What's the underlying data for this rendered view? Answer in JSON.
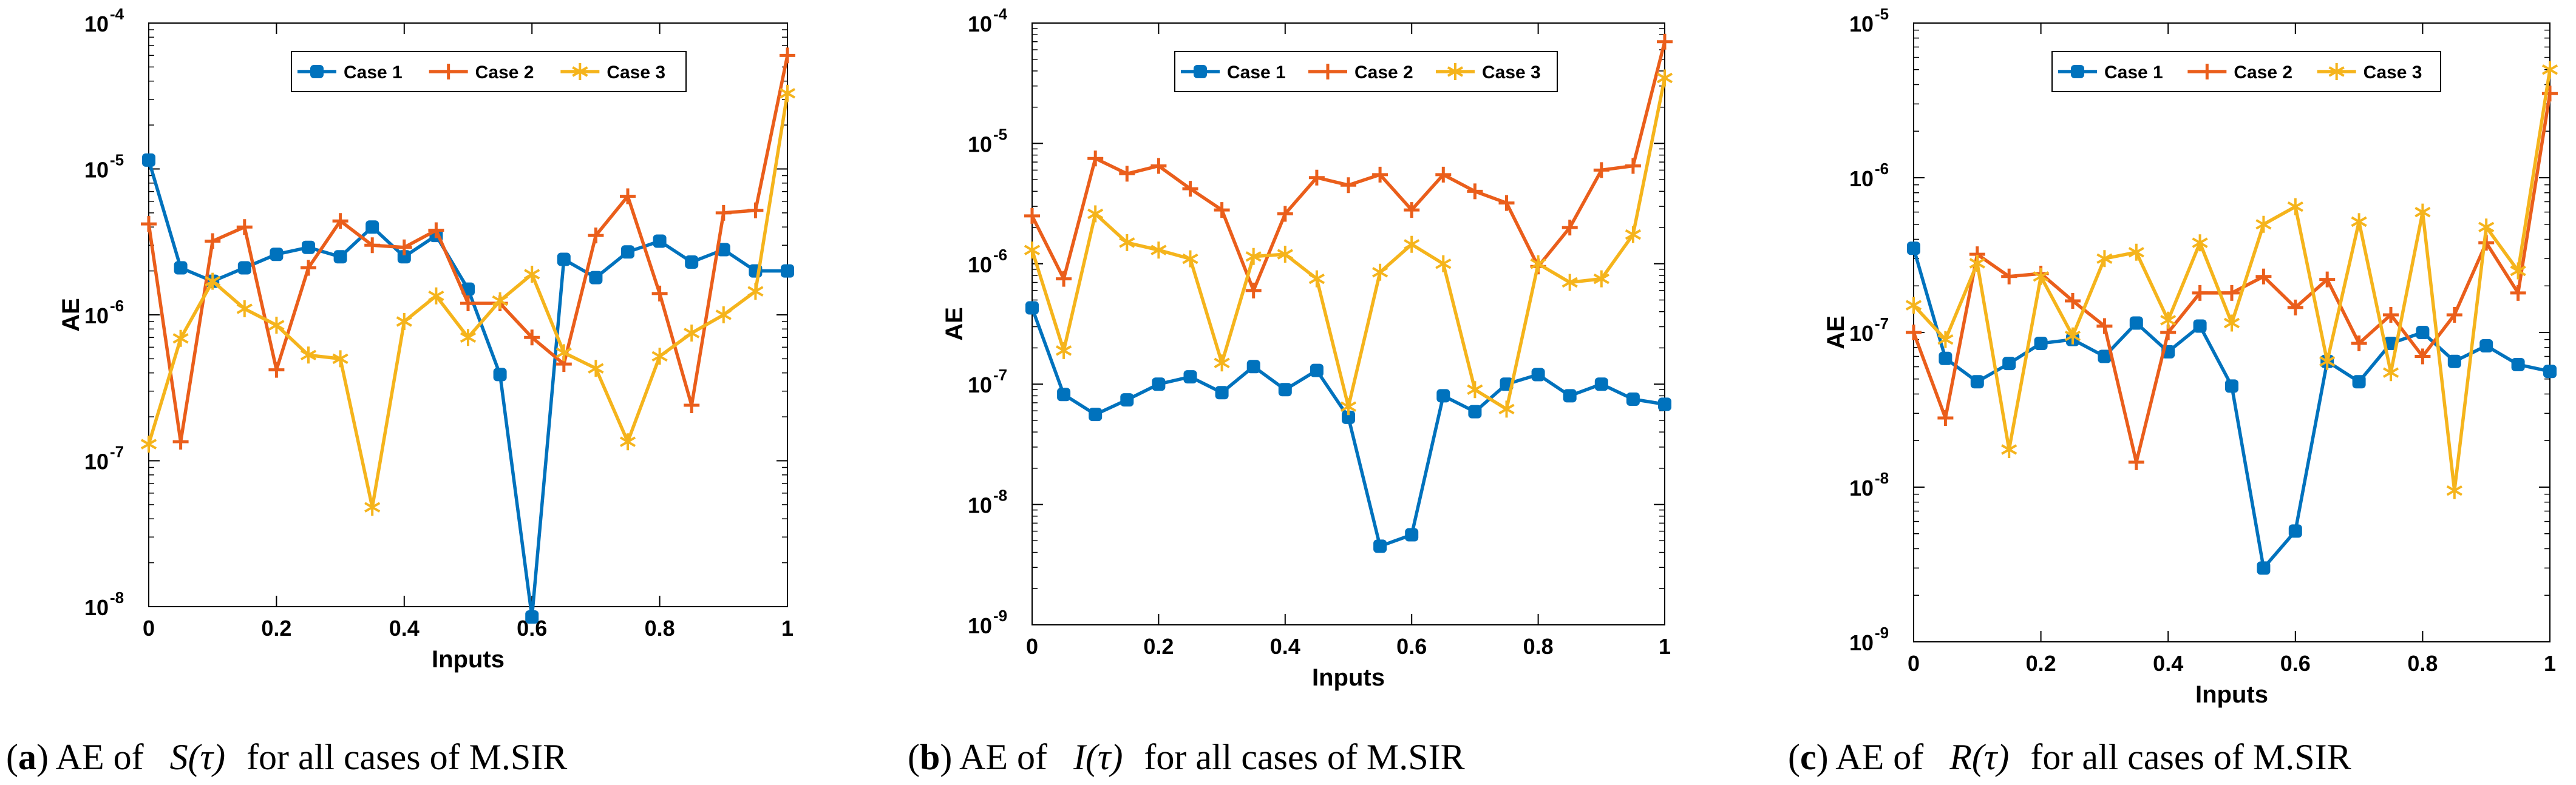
{
  "figure": {
    "colors": {
      "case1": "#0072BD",
      "case2": "#EA5E1B",
      "case3": "#F5B41C",
      "axis": "#000000",
      "box": "#000000",
      "background": "#ffffff"
    }
  },
  "chart_data": [
    {
      "type": "line",
      "id": "a",
      "title": "",
      "xlabel": "Inputs",
      "ylabel": "AE",
      "yscale": "log",
      "xlim": [
        0,
        1
      ],
      "ylim": [
        1e-08,
        0.0001
      ],
      "x_ticks": [
        "0",
        "0.2",
        "0.4",
        "0.6",
        "0.8",
        "1"
      ],
      "y_ticks": [
        {
          "base": "10",
          "exp": "-8",
          "value": 1e-08
        },
        {
          "base": "10",
          "exp": "-7",
          "value": 1e-07
        },
        {
          "base": "10",
          "exp": "-6",
          "value": 1e-06
        },
        {
          "base": "10",
          "exp": "-5",
          "value": 1e-05
        },
        {
          "base": "10",
          "exp": "-4",
          "value": 0.0001
        }
      ],
      "legend": [
        "Case 1",
        "Case 2",
        "Case 3"
      ],
      "legend_position": "top-center",
      "x": [
        0,
        0.05,
        0.1,
        0.15,
        0.2,
        0.25,
        0.3,
        0.35,
        0.4,
        0.45,
        0.5,
        0.55,
        0.6,
        0.65,
        0.7,
        0.75,
        0.8,
        0.85,
        0.9,
        0.95,
        1
      ],
      "series": [
        {
          "name": "Case 1",
          "values": [
            1.15e-05,
            2.1e-06,
            1.7e-06,
            2.1e-06,
            2.6e-06,
            2.9e-06,
            2.5e-06,
            4e-06,
            2.5e-06,
            3.5e-06,
            1.5e-06,
            3.9e-07,
            8.5e-09,
            2.4e-06,
            1.8e-06,
            2.7e-06,
            3.2e-06,
            2.3e-06,
            2.8e-06,
            2e-06,
            2e-06
          ]
        },
        {
          "name": "Case 2",
          "values": [
            4.2e-06,
            1.35e-07,
            3.2e-06,
            4e-06,
            4.2e-07,
            2.1e-06,
            4.4e-06,
            3e-06,
            2.9e-06,
            3.8e-06,
            1.2e-06,
            1.2e-06,
            7e-07,
            4.6e-07,
            3.5e-06,
            6.5e-06,
            1.4e-06,
            2.4e-07,
            5e-06,
            5.2e-06,
            6e-05
          ]
        },
        {
          "name": "Case 3",
          "values": [
            1.3e-07,
            6.9e-07,
            1.7e-06,
            1.1e-06,
            8.5e-07,
            5.3e-07,
            5e-07,
            4.8e-08,
            9e-07,
            1.35e-06,
            7e-07,
            1.25e-06,
            1.9e-06,
            5.5e-07,
            4.3e-07,
            1.35e-07,
            5.2e-07,
            7.5e-07,
            1e-06,
            1.45e-06,
            3.3e-05
          ]
        }
      ],
      "caption": {
        "letter": "a",
        "open": "(",
        "close": ")",
        "text_before": " AE of ",
        "func": "S",
        "tau": "(τ)",
        "text_after": " for all cases of M.SIR"
      }
    },
    {
      "type": "line",
      "id": "b",
      "title": "",
      "xlabel": "Inputs",
      "ylabel": "AE",
      "yscale": "log",
      "xlim": [
        0,
        1
      ],
      "ylim": [
        1e-09,
        0.0001
      ],
      "x_ticks": [
        "0",
        "0.2",
        "0.4",
        "0.6",
        "0.8",
        "1"
      ],
      "y_ticks": [
        {
          "base": "10",
          "exp": "-9",
          "value": 1e-09
        },
        {
          "base": "10",
          "exp": "-8",
          "value": 1e-08
        },
        {
          "base": "10",
          "exp": "-7",
          "value": 1e-07
        },
        {
          "base": "10",
          "exp": "-6",
          "value": 1e-06
        },
        {
          "base": "10",
          "exp": "-5",
          "value": 1e-05
        },
        {
          "base": "10",
          "exp": "-4",
          "value": 0.0001
        }
      ],
      "legend": [
        "Case 1",
        "Case 2",
        "Case 3"
      ],
      "legend_position": "top-center",
      "x": [
        0,
        0.05,
        0.1,
        0.15,
        0.2,
        0.25,
        0.3,
        0.35,
        0.4,
        0.45,
        0.5,
        0.55,
        0.6,
        0.65,
        0.7,
        0.75,
        0.8,
        0.85,
        0.9,
        0.95,
        1
      ],
      "series": [
        {
          "name": "Case 1",
          "values": [
            4.3e-07,
            8.2e-08,
            5.6e-08,
            7.4e-08,
            1e-07,
            1.15e-07,
            8.5e-08,
            1.4e-07,
            9e-08,
            1.3e-07,
            5.3e-08,
            4.5e-09,
            5.6e-09,
            8e-08,
            5.9e-08,
            1e-07,
            1.2e-07,
            8e-08,
            1e-07,
            7.5e-08,
            6.8e-08
          ]
        },
        {
          "name": "Case 2",
          "values": [
            2.5e-06,
            7.5e-07,
            7.5e-06,
            5.6e-06,
            6.5e-06,
            4.2e-06,
            2.8e-06,
            6e-07,
            2.6e-06,
            5.2e-06,
            4.5e-06,
            5.5e-06,
            2.8e-06,
            5.5e-06,
            4e-06,
            3.2e-06,
            9.5e-07,
            2e-06,
            6e-06,
            6.5e-06,
            7e-05
          ]
        },
        {
          "name": "Case 3",
          "values": [
            1.3e-06,
            1.9e-07,
            2.6e-06,
            1.5e-06,
            1.3e-06,
            1.1e-06,
            1.5e-07,
            1.15e-06,
            1.2e-06,
            7.5e-07,
            6.5e-08,
            8.5e-07,
            1.45e-06,
            1e-06,
            9e-08,
            6.2e-08,
            1e-06,
            7e-07,
            7.5e-07,
            1.75e-06,
            3.5e-05
          ]
        }
      ],
      "caption": {
        "letter": "b",
        "open": "(",
        "close": ")",
        "text_before": " AE of ",
        "func": "I",
        "tau": "(τ)",
        "text_after": " for all cases of M.SIR"
      }
    },
    {
      "type": "line",
      "id": "c",
      "title": "",
      "xlabel": "Inputs",
      "ylabel": "AE",
      "yscale": "log",
      "xlim": [
        0,
        1
      ],
      "ylim": [
        1e-09,
        1e-05
      ],
      "x_ticks": [
        "0",
        "0.2",
        "0.4",
        "0.6",
        "0.8",
        "1"
      ],
      "y_ticks": [
        {
          "base": "10",
          "exp": "-9",
          "value": 1e-09
        },
        {
          "base": "10",
          "exp": "-8",
          "value": 1e-08
        },
        {
          "base": "10",
          "exp": "-7",
          "value": 1e-07
        },
        {
          "base": "10",
          "exp": "-6",
          "value": 1e-06
        },
        {
          "base": "10",
          "exp": "-5",
          "value": 1e-05
        }
      ],
      "legend": [
        "Case 1",
        "Case 2",
        "Case 3"
      ],
      "legend_position": "top-center",
      "x": [
        0,
        0.05,
        0.1,
        0.15,
        0.2,
        0.25,
        0.3,
        0.35,
        0.4,
        0.45,
        0.5,
        0.55,
        0.6,
        0.65,
        0.7,
        0.75,
        0.8,
        0.85,
        0.9,
        0.95,
        1
      ],
      "series": [
        {
          "name": "Case 1",
          "values": [
            3.5e-07,
            6.8e-08,
            4.8e-08,
            6.3e-08,
            8.5e-08,
            9e-08,
            7e-08,
            1.15e-07,
            7.5e-08,
            1.1e-07,
            4.5e-08,
            3e-09,
            5.2e-09,
            6.5e-08,
            4.8e-08,
            8.5e-08,
            1e-07,
            6.5e-08,
            8.2e-08,
            6.2e-08,
            5.6e-08
          ]
        },
        {
          "name": "Case 2",
          "values": [
            1e-07,
            2.8e-08,
            3.2e-07,
            2.3e-07,
            2.4e-07,
            1.6e-07,
            1.1e-07,
            1.45e-08,
            1e-07,
            1.8e-07,
            1.8e-07,
            2.3e-07,
            1.45e-07,
            2.2e-07,
            8.5e-08,
            1.3e-07,
            7e-08,
            1.3e-07,
            3.8e-07,
            1.8e-07,
            3.5e-06
          ]
        },
        {
          "name": "Case 3",
          "values": [
            1.5e-07,
            9e-08,
            2.8e-07,
            1.75e-08,
            2.3e-07,
            9.5e-08,
            3e-07,
            3.3e-07,
            1.2e-07,
            3.8e-07,
            1.15e-07,
            5e-07,
            6.5e-07,
            6.5e-08,
            5.2e-07,
            5.5e-08,
            6e-07,
            9.5e-09,
            4.8e-07,
            2.5e-07,
            5e-06
          ]
        }
      ],
      "caption": {
        "letter": "c",
        "open": "(",
        "close": ")",
        "text_before": " AE of ",
        "func": "R",
        "tau": "(τ)",
        "text_after": " for all cases of M.SIR"
      }
    }
  ]
}
